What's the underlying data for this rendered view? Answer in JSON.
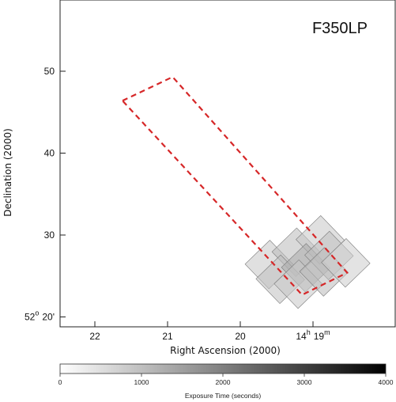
{
  "chart_data": {
    "type": "heatmap",
    "filter_label": "F350LP",
    "xlabel": "Right Ascension (2000)",
    "ylabel": "Declination (2000)",
    "x_axis": {
      "ticks": [
        {
          "ra_min": 22.0,
          "label": "22"
        },
        {
          "ra_min": 21.0,
          "label": "21"
        },
        {
          "ra_min": 20.0,
          "label": "20"
        },
        {
          "ra_min": 19.0,
          "label": "14",
          "sup": "h",
          "label2": "19",
          "sup2": "m"
        }
      ]
    },
    "y_axis": {
      "ticks": [
        {
          "dec_arcmin": 50,
          "label": "50"
        },
        {
          "dec_arcmin": 40,
          "label": "40"
        },
        {
          "dec_arcmin": 30,
          "label": "30"
        },
        {
          "dec_arcmin": 20,
          "label": "52",
          "sup": "o",
          "label2": "20'"
        }
      ]
    },
    "footprint_outline": {
      "color": "#d62728",
      "style": "dashed",
      "vertices_ra_min_dec_arcmin": [
        [
          21.62,
          46.4
        ],
        [
          20.93,
          49.3
        ],
        [
          18.53,
          25.4
        ],
        [
          19.15,
          22.7
        ]
      ]
    },
    "exposure_tiles": {
      "angle_deg": 46,
      "tile_size_arcmin": 4.2,
      "centers_ra_min_dec_arcmin": [
        [
          19.6,
          26.4
        ],
        [
          19.23,
          27.9
        ],
        [
          18.9,
          29.4
        ],
        [
          19.45,
          24.6
        ],
        [
          19.1,
          26.0
        ],
        [
          18.78,
          27.5
        ],
        [
          19.2,
          24.0
        ],
        [
          18.85,
          25.5
        ],
        [
          18.55,
          26.6
        ]
      ],
      "exposure_seconds": [
        900,
        1100,
        900,
        1000,
        1300,
        1000,
        900,
        1100,
        800
      ]
    },
    "colorbar": {
      "title": "Exposure Time (seconds)",
      "min": 0,
      "max": 4000,
      "ticks": [
        0,
        1000,
        2000,
        3000,
        4000
      ],
      "colors": [
        "#ffffff",
        "#000000"
      ]
    }
  }
}
